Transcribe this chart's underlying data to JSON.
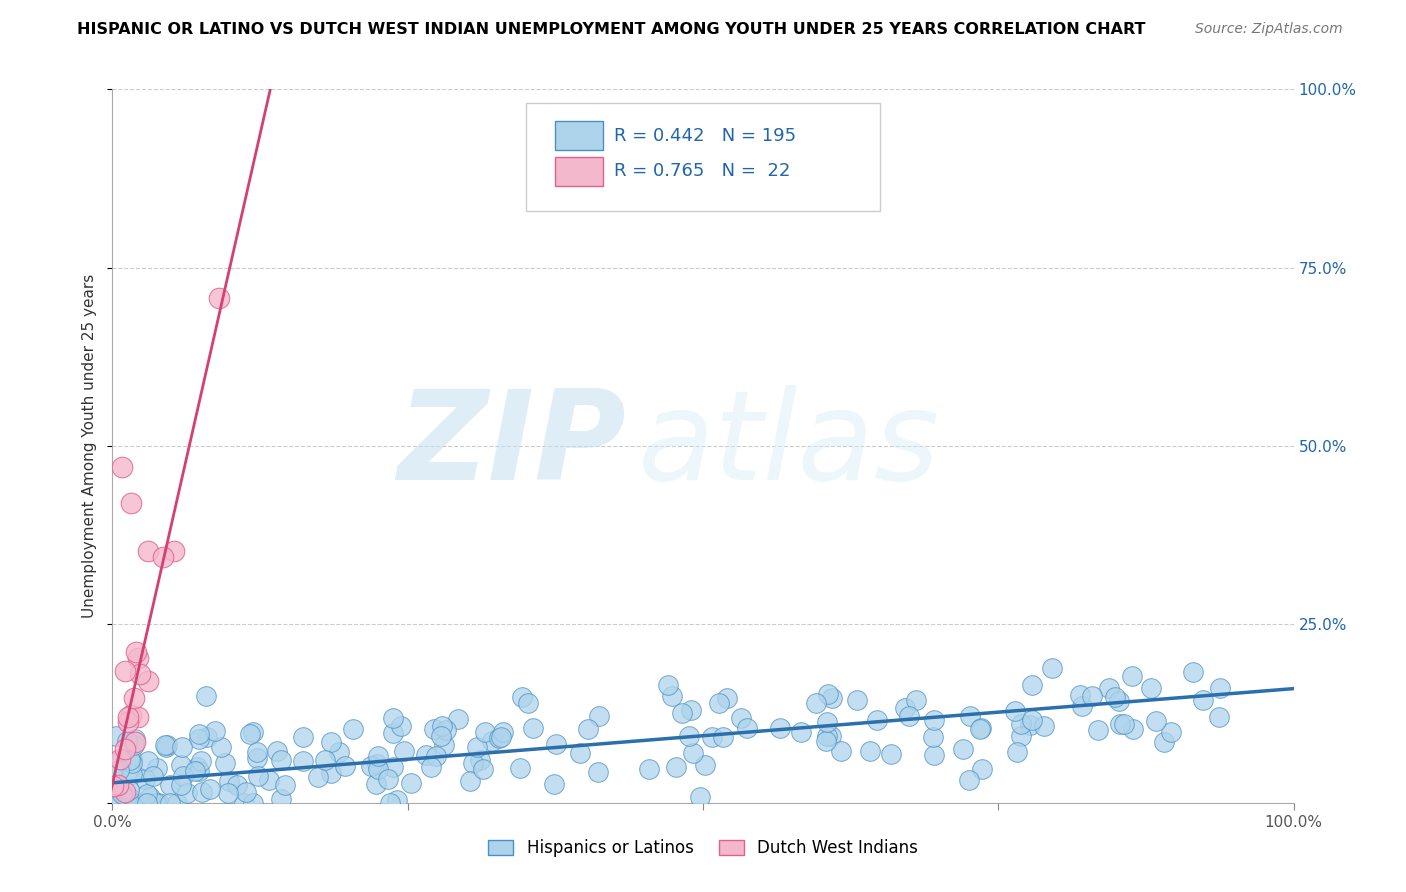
{
  "title": "HISPANIC OR LATINO VS DUTCH WEST INDIAN UNEMPLOYMENT AMONG YOUTH UNDER 25 YEARS CORRELATION CHART",
  "source": "Source: ZipAtlas.com",
  "ylabel": "Unemployment Among Youth under 25 years",
  "watermark_zip": "ZIP",
  "watermark_atlas": "atlas",
  "legend_label_1": "Hispanics or Latinos",
  "legend_label_2": "Dutch West Indians",
  "R1": 0.442,
  "N1": 195,
  "R2": 0.765,
  "N2": 22,
  "color_blue_fill": "#aed4ec",
  "color_blue_edge": "#4a90c4",
  "color_pink_fill": "#f4b8cc",
  "color_pink_edge": "#e06090",
  "color_blue_line": "#2b6fad",
  "color_pink_line": "#d44070",
  "color_text_blue": "#2166ac",
  "xlim": [
    0.0,
    1.0
  ],
  "ylim": [
    0.0,
    1.0
  ],
  "xticks": [
    0.0,
    0.25,
    0.5,
    0.75,
    1.0
  ],
  "yticks": [
    0.0,
    0.25,
    0.5,
    0.75,
    1.0
  ],
  "xticklabels": [
    "0.0%",
    "",
    "",
    "",
    "100.0%"
  ],
  "yticklabels_right": [
    "",
    "25.0%",
    "50.0%",
    "75.0%",
    "100.0%"
  ],
  "seed": 42,
  "blue_line_x0": 0.0,
  "blue_line_x1": 1.0,
  "blue_line_y0": 0.028,
  "blue_line_y1": 0.16,
  "pink_line_x0": -0.005,
  "pink_line_x1": 0.135,
  "pink_line_y0": -0.01,
  "pink_line_y1": 1.01
}
